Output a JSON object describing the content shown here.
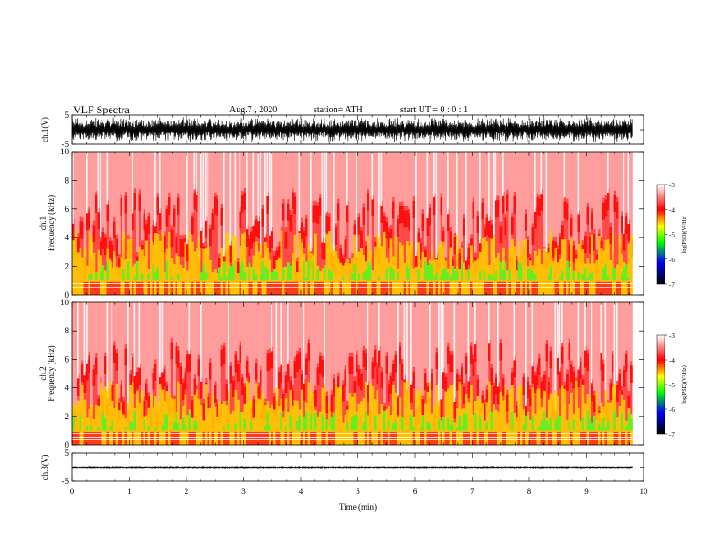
{
  "header": {
    "title": "VLF  Spectra",
    "date": "Aug.7  , 2020",
    "station": "station= ATH",
    "start_ut": "start  UT  =    0 : 0  : 1"
  },
  "chart_data": [
    {
      "type": "line",
      "name": "ch1-waveform",
      "ylabel": "ch.1(V)",
      "ylim": [
        -5,
        5
      ],
      "yticks": [
        "5",
        "-5"
      ],
      "xlim": [
        0,
        10
      ],
      "amplitude_v": 4.5,
      "color": "#000000"
    },
    {
      "type": "heatmap",
      "name": "ch1-spectrogram",
      "ylabel_channel": "ch.1",
      "ylabel": "Frequency  (kHz)",
      "ylim": [
        0,
        10
      ],
      "yticks": [
        "0",
        "2",
        "4",
        "6",
        "8",
        "10"
      ],
      "xlim": [
        0,
        9.8
      ],
      "colorbar": {
        "label": "log(PSD)(V²/Hz)",
        "range": [
          -7,
          -3
        ],
        "ticks": [
          "-3",
          "-4",
          "-5",
          "-6",
          "-7"
        ]
      }
    },
    {
      "type": "heatmap",
      "name": "ch2-spectrogram",
      "ylabel_channel": "ch.2",
      "ylabel": "Frequency  (kHz)",
      "ylim": [
        0,
        10
      ],
      "yticks": [
        "0",
        "2",
        "4",
        "6",
        "8",
        "10"
      ],
      "xlim": [
        0,
        9.8
      ],
      "colorbar": {
        "label": "log(PSD)(V²/Hz)",
        "range": [
          -7,
          -3
        ],
        "ticks": [
          "-3",
          "-4",
          "-5",
          "-6",
          "-7"
        ]
      }
    },
    {
      "type": "line",
      "name": "ch3-waveform",
      "ylabel": "ch.3(V)",
      "ylim": [
        -5,
        5
      ],
      "yticks": [
        "5",
        "-5"
      ],
      "xlim": [
        0,
        10
      ],
      "amplitude_v": 0.3,
      "color": "#000000"
    }
  ],
  "xaxis": {
    "label": "Time  (min)",
    "ticks": [
      "0",
      "1",
      "2",
      "3",
      "4",
      "5",
      "6",
      "7",
      "8",
      "9",
      "10"
    ],
    "range": [
      0,
      10
    ]
  },
  "colors": {
    "colorbar_scale": [
      "#ffffff",
      "#ff0000",
      "#ffff00",
      "#00ff00",
      "#0000ff",
      "#000000"
    ]
  }
}
